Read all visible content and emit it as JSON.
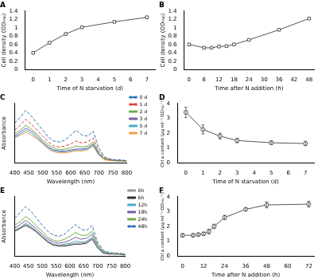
{
  "chart_data": [
    {
      "type": "line",
      "title": "A",
      "x_label": "Time of N starvation (d)",
      "y_label": "Cell density (OD₇₅₀)",
      "x": [
        0,
        1,
        2,
        3,
        5,
        7
      ],
      "xlim": [
        -0.5,
        7.5
      ],
      "xticks": [
        0,
        1,
        2,
        3,
        4,
        5,
        6,
        7
      ],
      "ylim": [
        0,
        1.4
      ],
      "yticks": [
        0,
        0.2,
        0.4,
        0.6,
        0.8,
        1,
        1.2,
        1.4
      ],
      "grid": false,
      "series": [
        {
          "color": "#555555",
          "marker": "square",
          "line_style": "solid",
          "values": [
            0.4,
            0.64,
            0.85,
            1.01,
            1.14,
            1.25
          ]
        }
      ]
    },
    {
      "type": "line",
      "title": "B",
      "x_label": "Time after N addition (h)",
      "y_label": "Cell density (OD₇₅₀)",
      "x": [
        0,
        6,
        9,
        12,
        15,
        18,
        24,
        36,
        48
      ],
      "xlim": [
        -2,
        50
      ],
      "xticks": [
        0,
        6,
        12,
        18,
        24,
        30,
        36,
        42,
        48
      ],
      "ylim": [
        0,
        1.4
      ],
      "yticks": [
        0,
        0.2,
        0.4,
        0.6,
        0.8,
        1,
        1.2,
        1.4
      ],
      "grid": false,
      "series": [
        {
          "color": "#555555",
          "marker": "square",
          "line_style": "solid",
          "values": [
            0.6,
            0.52,
            0.52,
            0.55,
            0.56,
            0.6,
            0.71,
            0.95,
            1.22
          ]
        }
      ]
    },
    {
      "type": "line",
      "title": "C",
      "x_label": "Wavelength (nm)",
      "y_label": "Absorbance",
      "x": [
        400,
        420,
        440,
        460,
        480,
        500,
        520,
        540,
        560,
        580,
        600,
        620,
        640,
        660,
        680,
        700,
        720,
        740,
        760,
        780,
        800
      ],
      "xlim": [
        400,
        800
      ],
      "xticks": [
        400,
        450,
        500,
        550,
        600,
        650,
        700,
        750,
        800
      ],
      "ylim": [
        0,
        0.6
      ],
      "grid": false,
      "legend": "right",
      "tick_labels": "x",
      "series": [
        {
          "name": "0 d",
          "color": "#2e75b6",
          "marker": "none",
          "line_style": "dashed",
          "values": [
            0.4,
            0.46,
            0.53,
            0.47,
            0.4,
            0.33,
            0.26,
            0.22,
            0.21,
            0.23,
            0.28,
            0.33,
            0.28,
            0.27,
            0.32,
            0.15,
            0.06,
            0.04,
            0.03,
            0.03,
            0.02
          ]
        },
        {
          "name": "1 d",
          "color": "#e0403a",
          "marker": "none",
          "line_style": "dashed",
          "values": [
            0.33,
            0.38,
            0.44,
            0.39,
            0.33,
            0.27,
            0.21,
            0.17,
            0.16,
            0.17,
            0.19,
            0.22,
            0.2,
            0.21,
            0.25,
            0.12,
            0.05,
            0.03,
            0.03,
            0.02,
            0.02
          ]
        },
        {
          "name": "2 d",
          "color": "#70ad47",
          "marker": "none",
          "line_style": "solid",
          "values": [
            0.29,
            0.33,
            0.38,
            0.34,
            0.29,
            0.23,
            0.18,
            0.15,
            0.13,
            0.14,
            0.15,
            0.17,
            0.16,
            0.17,
            0.21,
            0.1,
            0.04,
            0.03,
            0.02,
            0.02,
            0.02
          ]
        },
        {
          "name": "3 d",
          "color": "#7b5ea7",
          "marker": "none",
          "line_style": "solid",
          "values": [
            0.27,
            0.31,
            0.35,
            0.32,
            0.27,
            0.21,
            0.16,
            0.13,
            0.12,
            0.12,
            0.13,
            0.14,
            0.14,
            0.15,
            0.19,
            0.09,
            0.04,
            0.03,
            0.02,
            0.02,
            0.02
          ]
        },
        {
          "name": "5 d",
          "color": "#4bacc6",
          "marker": "none",
          "line_style": "solid",
          "values": [
            0.26,
            0.29,
            0.33,
            0.3,
            0.25,
            0.2,
            0.15,
            0.12,
            0.11,
            0.11,
            0.12,
            0.13,
            0.13,
            0.14,
            0.18,
            0.08,
            0.04,
            0.03,
            0.02,
            0.02,
            0.02
          ]
        },
        {
          "name": "7 d",
          "color": "#f39c4a",
          "marker": "none",
          "line_style": "solid",
          "values": [
            0.25,
            0.28,
            0.31,
            0.28,
            0.24,
            0.19,
            0.14,
            0.11,
            0.1,
            0.1,
            0.11,
            0.12,
            0.12,
            0.13,
            0.17,
            0.08,
            0.03,
            0.02,
            0.02,
            0.02,
            0.01
          ]
        }
      ]
    },
    {
      "type": "line",
      "title": "D",
      "x_label": "Time of N starvation (d)",
      "y_label": "Chl a content (μg ml⁻¹ OD₇₅₀⁻¹)",
      "x": [
        0,
        1,
        2,
        3,
        5,
        7
      ],
      "xlim": [
        -0.5,
        7.5
      ],
      "xticks": [
        0,
        1,
        2,
        3,
        4,
        5,
        6,
        7
      ],
      "ylim": [
        0,
        4
      ],
      "yticks": [
        0,
        1,
        2,
        3,
        4
      ],
      "grid": false,
      "series": [
        {
          "color": "#555555",
          "marker": "circle",
          "line_style": "solid",
          "values": [
            3.4,
            2.25,
            1.8,
            1.5,
            1.35,
            1.3
          ],
          "errors": [
            0.35,
            0.3,
            0.2,
            0.15,
            0.12,
            0.15
          ]
        }
      ]
    },
    {
      "type": "line",
      "title": "E",
      "x_label": "Wavelength (nm)",
      "y_label": "Absorbance",
      "x": [
        400,
        420,
        440,
        460,
        480,
        500,
        520,
        540,
        560,
        580,
        600,
        620,
        640,
        660,
        680,
        700,
        720,
        740,
        760,
        780,
        800
      ],
      "xlim": [
        400,
        800
      ],
      "xticks": [
        400,
        450,
        500,
        550,
        600,
        650,
        700,
        750,
        800
      ],
      "ylim": [
        0,
        0.6
      ],
      "grid": false,
      "legend": "right",
      "tick_labels": "x",
      "series": [
        {
          "name": "0h",
          "color": "#999999",
          "marker": "none",
          "line_style": "solid",
          "values": [
            0.26,
            0.29,
            0.32,
            0.29,
            0.25,
            0.2,
            0.15,
            0.12,
            0.11,
            0.11,
            0.12,
            0.13,
            0.13,
            0.14,
            0.18,
            0.08,
            0.04,
            0.03,
            0.02,
            0.02,
            0.02
          ]
        },
        {
          "name": "6h",
          "color": "#333333",
          "marker": "none",
          "line_style": "solid",
          "values": [
            0.25,
            0.28,
            0.31,
            0.28,
            0.24,
            0.19,
            0.14,
            0.11,
            0.1,
            0.1,
            0.11,
            0.12,
            0.12,
            0.13,
            0.17,
            0.08,
            0.03,
            0.02,
            0.02,
            0.02,
            0.01
          ]
        },
        {
          "name": "12h",
          "color": "#4bacc6",
          "marker": "none",
          "line_style": "solid",
          "values": [
            0.26,
            0.29,
            0.33,
            0.3,
            0.25,
            0.2,
            0.15,
            0.12,
            0.11,
            0.12,
            0.13,
            0.15,
            0.14,
            0.15,
            0.19,
            0.09,
            0.04,
            0.03,
            0.02,
            0.02,
            0.02
          ]
        },
        {
          "name": "18h",
          "color": "#7b5ea7",
          "marker": "none",
          "line_style": "solid",
          "values": [
            0.28,
            0.32,
            0.36,
            0.32,
            0.27,
            0.22,
            0.17,
            0.14,
            0.13,
            0.14,
            0.16,
            0.19,
            0.17,
            0.18,
            0.22,
            0.1,
            0.04,
            0.03,
            0.02,
            0.02,
            0.02
          ]
        },
        {
          "name": "24h",
          "color": "#70ad47",
          "marker": "none",
          "line_style": "solid",
          "values": [
            0.31,
            0.35,
            0.4,
            0.36,
            0.3,
            0.25,
            0.19,
            0.16,
            0.15,
            0.17,
            0.2,
            0.24,
            0.21,
            0.21,
            0.25,
            0.12,
            0.05,
            0.03,
            0.03,
            0.02,
            0.02
          ]
        },
        {
          "name": "48h",
          "color": "#2e75b6",
          "marker": "none",
          "line_style": "dashed",
          "values": [
            0.38,
            0.44,
            0.5,
            0.45,
            0.38,
            0.31,
            0.25,
            0.21,
            0.2,
            0.22,
            0.27,
            0.32,
            0.27,
            0.26,
            0.31,
            0.14,
            0.06,
            0.04,
            0.03,
            0.03,
            0.02
          ]
        }
      ]
    },
    {
      "type": "line",
      "title": "F",
      "x_label": "Time after N addition (h)",
      "y_label": "Chl a content (μg ml⁻¹ OD₇₅₀⁻¹)",
      "x": [
        0,
        6,
        9,
        12,
        15,
        18,
        24,
        36,
        48,
        72
      ],
      "xlim": [
        -3,
        75
      ],
      "xticks": [
        0,
        12,
        24,
        36,
        48,
        60,
        72
      ],
      "ylim": [
        0,
        4
      ],
      "yticks": [
        0,
        1,
        2,
        3,
        4
      ],
      "grid": false,
      "series": [
        {
          "color": "#555555",
          "marker": "circle",
          "line_style": "solid",
          "values": [
            1.4,
            1.4,
            1.45,
            1.5,
            1.65,
            2.0,
            2.6,
            3.15,
            3.45,
            3.5
          ],
          "errors": [
            0.1,
            0.1,
            0.1,
            0.1,
            0.15,
            0.15,
            0.15,
            0.1,
            0.2,
            0.2
          ]
        }
      ]
    }
  ]
}
